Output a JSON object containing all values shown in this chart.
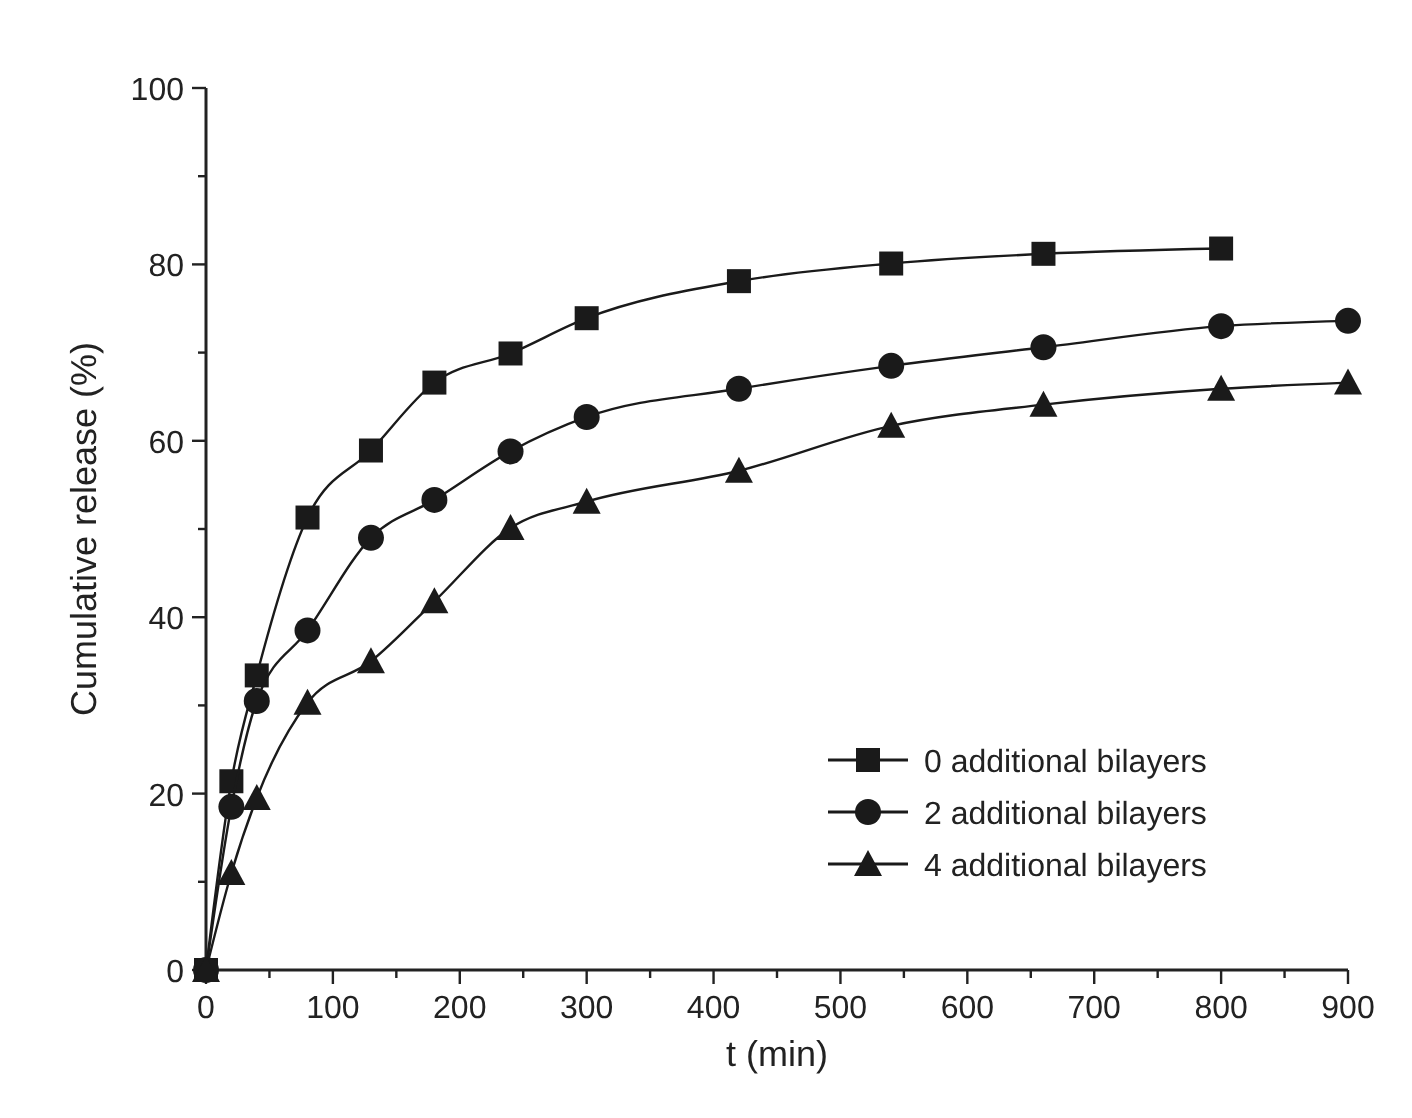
{
  "chart_data": {
    "type": "line",
    "xlabel": "t (min)",
    "ylabel": "Cumulative release (%)",
    "xlim": [
      0,
      900
    ],
    "ylim": [
      0,
      100
    ],
    "xticks": [
      0,
      {
        "value": 50,
        "label": null
      },
      100,
      {
        "value": 150,
        "label": null
      },
      200,
      {
        "value": 250,
        "label": null
      },
      300,
      {
        "value": 350,
        "label": null
      },
      400,
      {
        "value": 450,
        "label": null
      },
      500,
      {
        "value": 550,
        "label": null
      },
      600,
      {
        "value": 650,
        "label": null
      },
      700,
      {
        "value": 750,
        "label": null
      },
      800,
      {
        "value": 850,
        "label": null
      },
      900
    ],
    "yticks": [
      0,
      {
        "value": 10,
        "label": null
      },
      20,
      {
        "value": 30,
        "label": null
      },
      40,
      {
        "value": 50,
        "label": null
      },
      60,
      {
        "value": 70,
        "label": null
      },
      80,
      {
        "value": 90,
        "label": null
      },
      100
    ],
    "grid": false,
    "legend": "bottom right",
    "line_style": "solid",
    "series": [
      {
        "name": "0 additional bilayers",
        "color": "#1a1a1a",
        "marker": "square",
        "x": [
          0,
          20,
          40,
          80,
          130,
          180,
          240,
          300,
          420,
          540,
          660,
          800
        ],
        "values": [
          0,
          21.4,
          33.4,
          51.3,
          58.9,
          66.6,
          69.9,
          73.9,
          78.1,
          80.1,
          81.2,
          81.8
        ]
      },
      {
        "name": "2 additional bilayers",
        "color": "#1a1a1a",
        "marker": "circle",
        "x": [
          0,
          20,
          40,
          80,
          130,
          180,
          240,
          300,
          420,
          540,
          660,
          800,
          900
        ],
        "values": [
          0,
          18.5,
          30.5,
          38.5,
          49,
          53.3,
          58.8,
          62.7,
          65.9,
          68.5,
          70.6,
          73,
          73.6
        ]
      },
      {
        "name": "4 additional bilayers",
        "color": "#1a1a1a",
        "marker": "triangle",
        "x": [
          0,
          20,
          40,
          80,
          130,
          180,
          240,
          300,
          420,
          540,
          660,
          800,
          900
        ],
        "values": [
          0,
          11,
          19.5,
          30.3,
          35,
          41.8,
          50.1,
          53.1,
          56.6,
          61.7,
          64.1,
          65.9,
          66.6
        ]
      }
    ]
  }
}
